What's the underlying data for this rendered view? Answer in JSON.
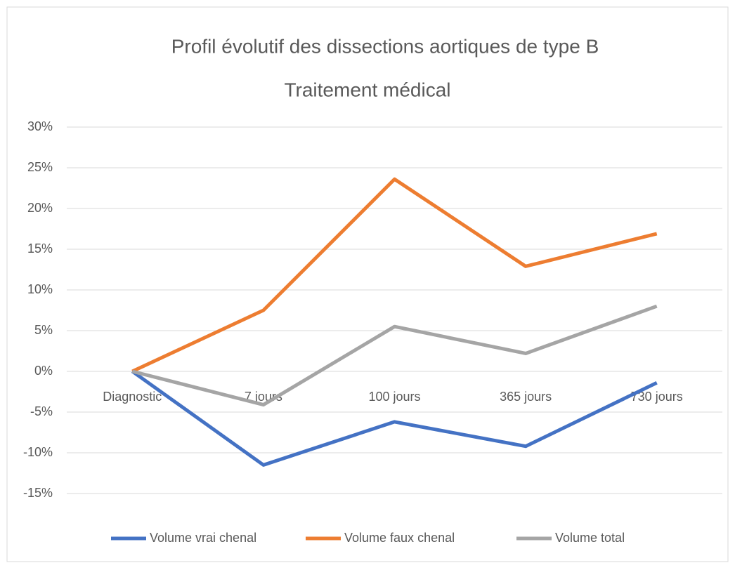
{
  "chart_data": {
    "type": "line",
    "title": "Profil évolutif des dissections aortiques de type B",
    "subtitle": "Traitement médical",
    "categories": [
      "Diagnostic",
      "7 jours",
      "100 jours",
      "365 jours",
      "730 jours"
    ],
    "series": [
      {
        "name": "Volume vrai chenal",
        "color": "#4472c4",
        "values": [
          0,
          -11.5,
          -6.2,
          -9.2,
          -1.4
        ]
      },
      {
        "name": "Volume faux chenal",
        "color": "#ed7d31",
        "values": [
          0,
          7.5,
          23.6,
          12.9,
          16.9
        ]
      },
      {
        "name": "Volume total",
        "color": "#a5a5a5",
        "values": [
          0,
          -4.1,
          5.5,
          2.2,
          8.0
        ]
      }
    ],
    "ylim": [
      -15,
      30
    ],
    "yticks": [
      {
        "value": -15,
        "label": "-15%"
      },
      {
        "value": -10,
        "label": "-10%"
      },
      {
        "value": -5,
        "label": "-5%"
      },
      {
        "value": 0,
        "label": "0%"
      },
      {
        "value": 5,
        "label": "5%"
      },
      {
        "value": 10,
        "label": "10%"
      },
      {
        "value": 15,
        "label": "15%"
      },
      {
        "value": 20,
        "label": "20%"
      },
      {
        "value": 25,
        "label": "25%"
      },
      {
        "value": 30,
        "label": "30%"
      }
    ],
    "grid": true,
    "legend": "bottom"
  }
}
